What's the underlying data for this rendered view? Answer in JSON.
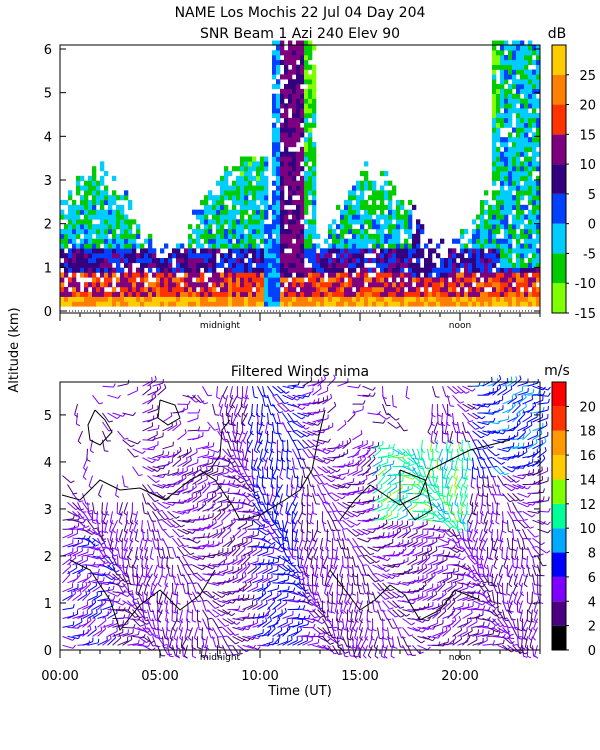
{
  "title_line1": "NAME Los Mochis   22 Jul 04 Day 204",
  "title_line2": "SNR Beam 1 Azi 240 Elev 90",
  "shared_ylabel": "Altitude (km)",
  "colors": {
    "snr": [
      "#7fff00",
      "#00cc00",
      "#00ccff",
      "#0040ff",
      "#33007f",
      "#7f007f",
      "#ff3300",
      "#ff8000",
      "#ffcc00"
    ],
    "wind": [
      "#000000",
      "#4b0082",
      "#7f00ff",
      "#0000ff",
      "#00aaff",
      "#00ff99",
      "#7fff00",
      "#ffcc00",
      "#ff9900",
      "#ff3300",
      "#ff0000"
    ]
  },
  "chart_data": [
    {
      "type": "heatmap",
      "title": "SNR Beam 1 Azi 240 Elev 90",
      "x_range_hours": [
        0,
        24
      ],
      "x_markers": [
        "midnight",
        "noon"
      ],
      "ylim": [
        0,
        6
      ],
      "yticks": [
        "0",
        "1",
        "2",
        "3",
        "4",
        "5",
        "6"
      ],
      "colorbar": {
        "unit": "dB",
        "ticks": [
          "25",
          "20",
          "15",
          "10",
          "5",
          "0",
          "-5",
          "-10",
          "-15"
        ],
        "range": [
          -15,
          30
        ]
      }
    },
    {
      "type": "scatter",
      "title": "Filtered Winds nima",
      "xlabel": "Time (UT)",
      "x_range_hours": [
        0,
        24
      ],
      "xticks": [
        "00:00",
        "05:00",
        "10:00",
        "15:00",
        "20:00"
      ],
      "x_markers": [
        "midnight",
        "noon"
      ],
      "ylim": [
        0,
        5.7
      ],
      "yticks": [
        "0",
        "1",
        "2",
        "3",
        "4",
        "5"
      ],
      "colorbar": {
        "unit": "m/s",
        "ticks": [
          "20",
          "18",
          "16",
          "14",
          "12",
          "10",
          "8",
          "6",
          "4",
          "2",
          "0"
        ],
        "range": [
          0,
          22
        ]
      }
    }
  ]
}
